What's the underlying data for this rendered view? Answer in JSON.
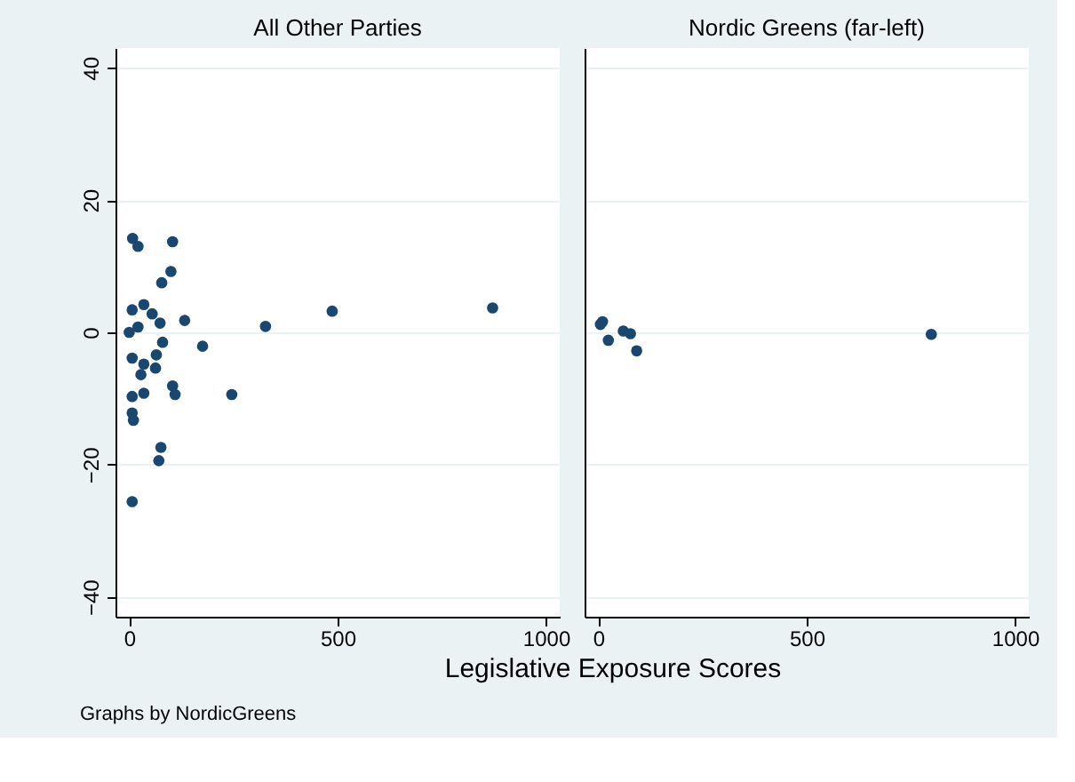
{
  "chart_data": [
    {
      "type": "scatter",
      "title": "All Other Parties",
      "xlabel": "Legislative Exposure Scores",
      "annotations": [
        "Graphs by NordicGreens"
      ],
      "x": [
        8,
        21,
        104,
        78,
        100,
        7,
        35,
        55,
        74,
        133,
        327,
        80,
        176,
        0,
        21,
        7,
        35,
        65,
        63,
        28,
        104,
        110,
        246,
        35,
        7,
        7,
        10,
        76,
        71,
        7,
        487,
        872
      ],
      "series": [
        {
          "color": "#1a476f",
          "values": [
            14.2,
            13,
            13.7,
            7.5,
            9.2,
            3.4,
            4.2,
            2.8,
            1.4,
            1.8,
            0.9,
            -1.5,
            -2.1,
            0,
            0.8,
            -3.9,
            -4.8,
            -3.4,
            -5.4,
            -6.4,
            -8.1,
            -9.4,
            -9.4,
            -9.2,
            -9.7,
            -12.2,
            -13.3,
            -17.4,
            -19.4,
            -25.6,
            3.2,
            3.7
          ]
        }
      ],
      "xlim": [
        -33,
        1033
      ],
      "ylim": [
        -43,
        43
      ],
      "xticks": [
        0,
        500,
        1000
      ],
      "yticks": [
        -40,
        -20,
        0,
        20,
        40
      ],
      "grid": "y",
      "marker": "circle"
    },
    {
      "type": "scatter",
      "title": "Nordic Greens (far-left)",
      "x": [
        10,
        5,
        24,
        60,
        77,
        92,
        799
      ],
      "series": [
        {
          "color": "#1a476f",
          "values": [
            1.6,
            1.2,
            -1.2,
            0.2,
            -0.2,
            -2.8,
            -0.3
          ]
        }
      ],
      "xlim": [
        -33,
        1033
      ],
      "ylim": [
        -43,
        43
      ],
      "xticks": [
        0,
        500,
        1000
      ],
      "yticks": [
        -40,
        -20,
        0,
        20,
        40
      ],
      "grid": "y",
      "marker": "circle",
      "tick_labels": "x"
    }
  ]
}
